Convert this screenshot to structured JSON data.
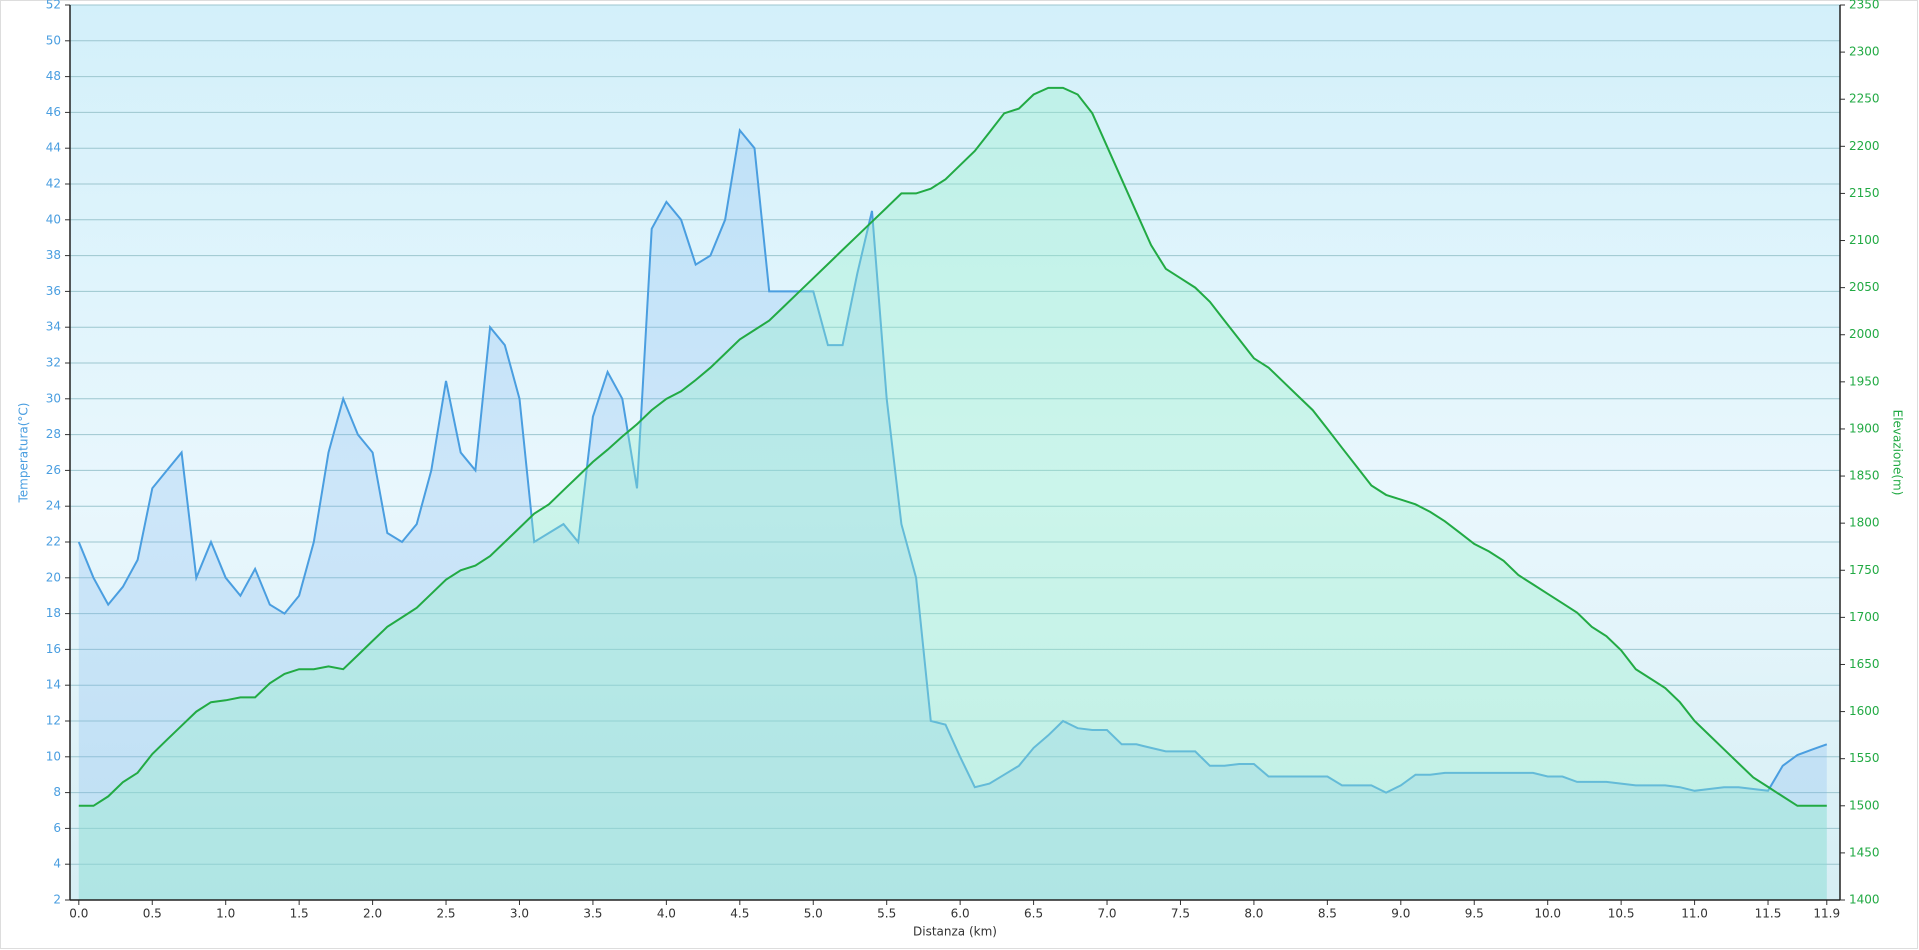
{
  "chart_data": {
    "type": "area",
    "x_label": "Distanza  (km)",
    "y_label": "Temperatura(°C)",
    "y2_label": "Elevazione(m)",
    "x": [
      0,
      0.1,
      0.2,
      0.3,
      0.4,
      0.5,
      0.6,
      0.7,
      0.8,
      0.9,
      1,
      1.1,
      1.2,
      1.3,
      1.4,
      1.5,
      1.6,
      1.7,
      1.8,
      1.9,
      2,
      2.1,
      2.2,
      2.3,
      2.4,
      2.5,
      2.6,
      2.7,
      2.8,
      2.9,
      3,
      3.1,
      3.2,
      3.3,
      3.4,
      3.5,
      3.6,
      3.7,
      3.8,
      3.9,
      4,
      4.1,
      4.2,
      4.3,
      4.4,
      4.5,
      4.6,
      4.7,
      4.8,
      4.9,
      5,
      5.1,
      5.2,
      5.3,
      5.4,
      5.5,
      5.6,
      5.7,
      5.8,
      5.9,
      6,
      6.1,
      6.2,
      6.3,
      6.4,
      6.5,
      6.6,
      6.7,
      6.8,
      6.9,
      7,
      7.1,
      7.2,
      7.3,
      7.4,
      7.5,
      7.6,
      7.7,
      7.8,
      7.9,
      8,
      8.1,
      8.2,
      8.3,
      8.4,
      8.5,
      8.6,
      8.7,
      8.8,
      8.9,
      9,
      9.1,
      9.2,
      9.3,
      9.4,
      9.5,
      9.6,
      9.7,
      9.8,
      9.9,
      10,
      10.1,
      10.2,
      10.3,
      10.4,
      10.5,
      10.6,
      10.7,
      10.8,
      10.9,
      11,
      11.1,
      11.2,
      11.3,
      11.4,
      11.5,
      11.6,
      11.7,
      11.8,
      11.9
    ],
    "series": [
      {
        "name": "Temperatura",
        "color": "#4a9ee0",
        "values": [
          22,
          20,
          18.5,
          19.5,
          21,
          25,
          26,
          27,
          20,
          22,
          20,
          19,
          20.5,
          18.5,
          18,
          19,
          22,
          27,
          30,
          28,
          27,
          22.5,
          22,
          23,
          26,
          31,
          27,
          26,
          34,
          33,
          30,
          22,
          22.5,
          23,
          22,
          29,
          31.5,
          30,
          25,
          39.5,
          41,
          40,
          37.5,
          38,
          40,
          45,
          44,
          36,
          36,
          36,
          36,
          33,
          33,
          37,
          40.5,
          30,
          23,
          20,
          12,
          11.8,
          10,
          8.3,
          8.5,
          9,
          9.5,
          10.5,
          11.2,
          12,
          11.6,
          11.5,
          11.5,
          10.7,
          10.7,
          10.5,
          10.3,
          10.3,
          10.3,
          9.5,
          9.5,
          9.6,
          9.6,
          8.9,
          8.9,
          8.9,
          8.9,
          8.9,
          8.4,
          8.4,
          8.4,
          8,
          8.4,
          9,
          9,
          9.1,
          9.1,
          9.1,
          9.1,
          9.1,
          9.1,
          9.1,
          8.9,
          8.9,
          8.6,
          8.6,
          8.6,
          8.5,
          8.4,
          8.4,
          8.4,
          8.3,
          8.1,
          8.2,
          8.3,
          8.3,
          8.2,
          8.1,
          9.5,
          10.1,
          10.4,
          10.7
        ]
      },
      {
        "name": "Elevazione",
        "color": "#22aa44",
        "axis": "y2",
        "values": [
          1500,
          1500,
          1510,
          1525,
          1535,
          1555,
          1570,
          1585,
          1600,
          1610,
          1612,
          1615,
          1615,
          1630,
          1640,
          1645,
          1645,
          1648,
          1645,
          1660,
          1675,
          1690,
          1700,
          1710,
          1725,
          1740,
          1750,
          1755,
          1765,
          1780,
          1795,
          1810,
          1820,
          1835,
          1850,
          1865,
          1878,
          1892,
          1905,
          1920,
          1932,
          1940,
          1952,
          1965,
          1980,
          1995,
          2005,
          2015,
          2030,
          2045,
          2060,
          2075,
          2090,
          2105,
          2120,
          2135,
          2150,
          2150,
          2155,
          2165,
          2180,
          2195,
          2215,
          2235,
          2240,
          2255,
          2262,
          2262,
          2255,
          2235,
          2200,
          2165,
          2130,
          2095,
          2070,
          2060,
          2050,
          2035,
          2015,
          1995,
          1975,
          1965,
          1950,
          1935,
          1920,
          1900,
          1880,
          1860,
          1840,
          1830,
          1825,
          1820,
          1812,
          1802,
          1790,
          1778,
          1770,
          1760,
          1745,
          1735,
          1725,
          1715,
          1705,
          1690,
          1680,
          1665,
          1645,
          1635,
          1625,
          1610,
          1590,
          1575,
          1560,
          1545,
          1530,
          1520,
          1510,
          1500,
          1500,
          1500
        ]
      }
    ],
    "xlim": [
      -0.06,
      11.99
    ],
    "xticks": [
      {
        "value": 0,
        "label": "0.0"
      },
      0.5,
      {
        "value": 1,
        "label": "1.0"
      },
      1.5,
      {
        "value": 2,
        "label": "2.0"
      },
      2.5,
      {
        "value": 3,
        "label": "3.0"
      },
      3.5,
      {
        "value": 4,
        "label": "4.0"
      },
      4.5,
      {
        "value": 5,
        "label": "5.0"
      },
      5.5,
      {
        "value": 6,
        "label": "6.0"
      },
      6.5,
      {
        "value": 7,
        "label": "7.0"
      },
      7.5,
      {
        "value": 8,
        "label": "8.0"
      },
      8.5,
      {
        "value": 9,
        "label": "9.0"
      },
      9.5,
      {
        "value": 10,
        "label": "10.0"
      },
      10.5,
      {
        "value": 11,
        "label": "11.0"
      },
      11.5,
      11.9
    ],
    "ylim": [
      2,
      52
    ],
    "yticks": [
      2,
      4,
      6,
      8,
      10,
      12,
      14,
      16,
      18,
      20,
      22,
      24,
      26,
      28,
      30,
      32,
      34,
      36,
      38,
      40,
      42,
      44,
      46,
      48,
      50,
      52
    ],
    "y2lim": [
      1400,
      2350
    ],
    "y2ticks": [
      1400,
      1450,
      1500,
      1550,
      1600,
      1650,
      1700,
      1750,
      1800,
      1850,
      1900,
      1950,
      2000,
      2050,
      2100,
      2150,
      2200,
      2250,
      2300,
      2350
    ],
    "grid": true
  }
}
